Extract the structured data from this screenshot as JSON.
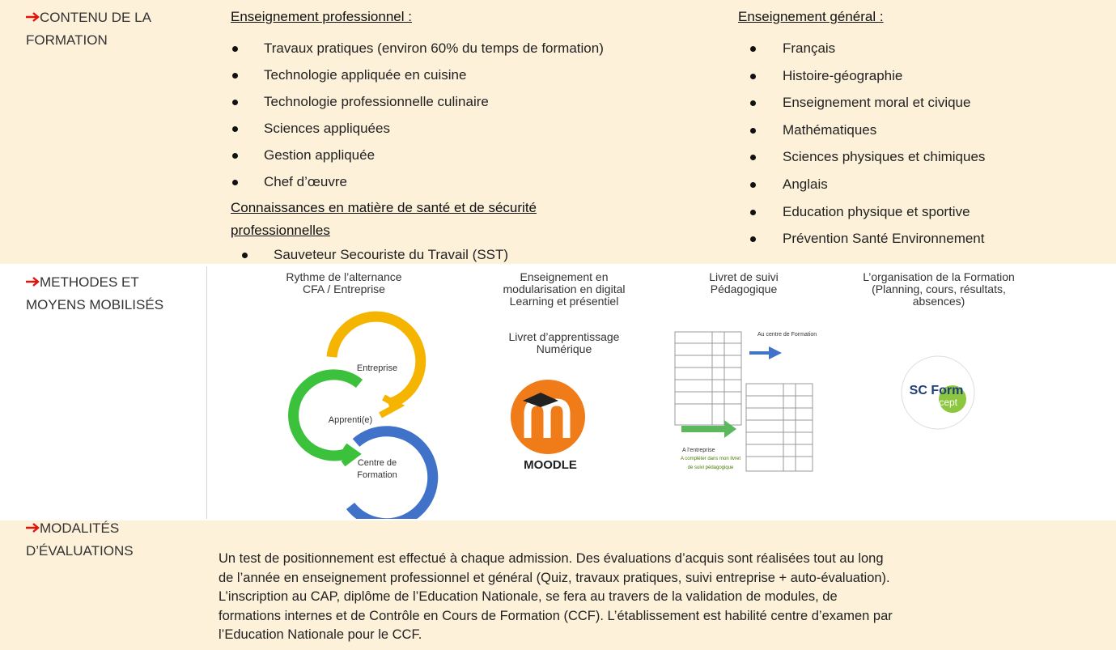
{
  "contenu": {
    "label": "CONTENU DE LA FORMATION",
    "pro": {
      "heading": "Enseignement professionnel :",
      "items": [
        "Travaux pratiques (environ 60% du temps de formation)",
        "Technologie appliquée en cuisine",
        "Technologie professionnelle culinaire",
        "Sciences appliquées",
        "Gestion appliquée",
        "Chef d’œuvre"
      ]
    },
    "sante": {
      "heading_lines": [
        "Connaissances en matière de santé et de sécurité",
        "professionnelles"
      ],
      "items": [
        "Sauveteur Secouriste du Travail (SST)"
      ]
    },
    "general": {
      "heading": "Enseignement général :",
      "items": [
        "Français",
        "Histoire-géographie",
        "Enseignement moral et civique",
        "Mathématiques",
        "Sciences physiques et chimiques",
        "Anglais",
        "Education physique et sportive",
        "Prévention Santé Environnement"
      ]
    }
  },
  "methodes": {
    "label": "METHODES ET MOYENS MOBILISÉS",
    "rythme": {
      "caption_lines": [
        "Rythme de l’alternance",
        "CFA / Entreprise"
      ],
      "steps": [
        "Entreprise",
        "Apprenti(e)",
        "Centre de",
        "Formation"
      ]
    },
    "digital": {
      "caption_lines": [
        "Enseignement en",
        "modularisation en digital",
        "Learning et présentiel"
      ],
      "sub_lines": [
        "Livret d’apprentissage",
        "Numérique"
      ],
      "logo": "MOODLE"
    },
    "livret": {
      "caption_lines": [
        "Livret de suivi",
        "Pédagogique"
      ],
      "centre": "Au centre de Formation",
      "entreprise": "A l’entreprise",
      "note_lines": [
        "A compléter dans mon livret",
        "de suivi pédagogique"
      ]
    },
    "organisation": {
      "caption_lines": [
        "L’organisation de la Formation",
        "(Planning, cours, résultats,",
        "absences)"
      ],
      "logo_top": "SC Form",
      "logo_bottom": "concept"
    }
  },
  "modalites": {
    "label": "MODALITÉS D’ÉVALUATIONS",
    "lines": [
      "Un test de positionnement est effectué à chaque admission. Des évaluations d’acquis sont réalisées tout au long",
      "de l’année en enseignement professionnel et général (Quiz, travaux pratiques, suivi entreprise + auto-évaluation).",
      "L’inscription au CAP, diplôme de l’Education Nationale, se fera au travers de la validation de modules, de",
      "formations internes et de Contrôle en Cours de Formation (CCF). L’établissement est habilité centre d’examen par",
      "l’Education Nationale pour le CCF."
    ]
  }
}
